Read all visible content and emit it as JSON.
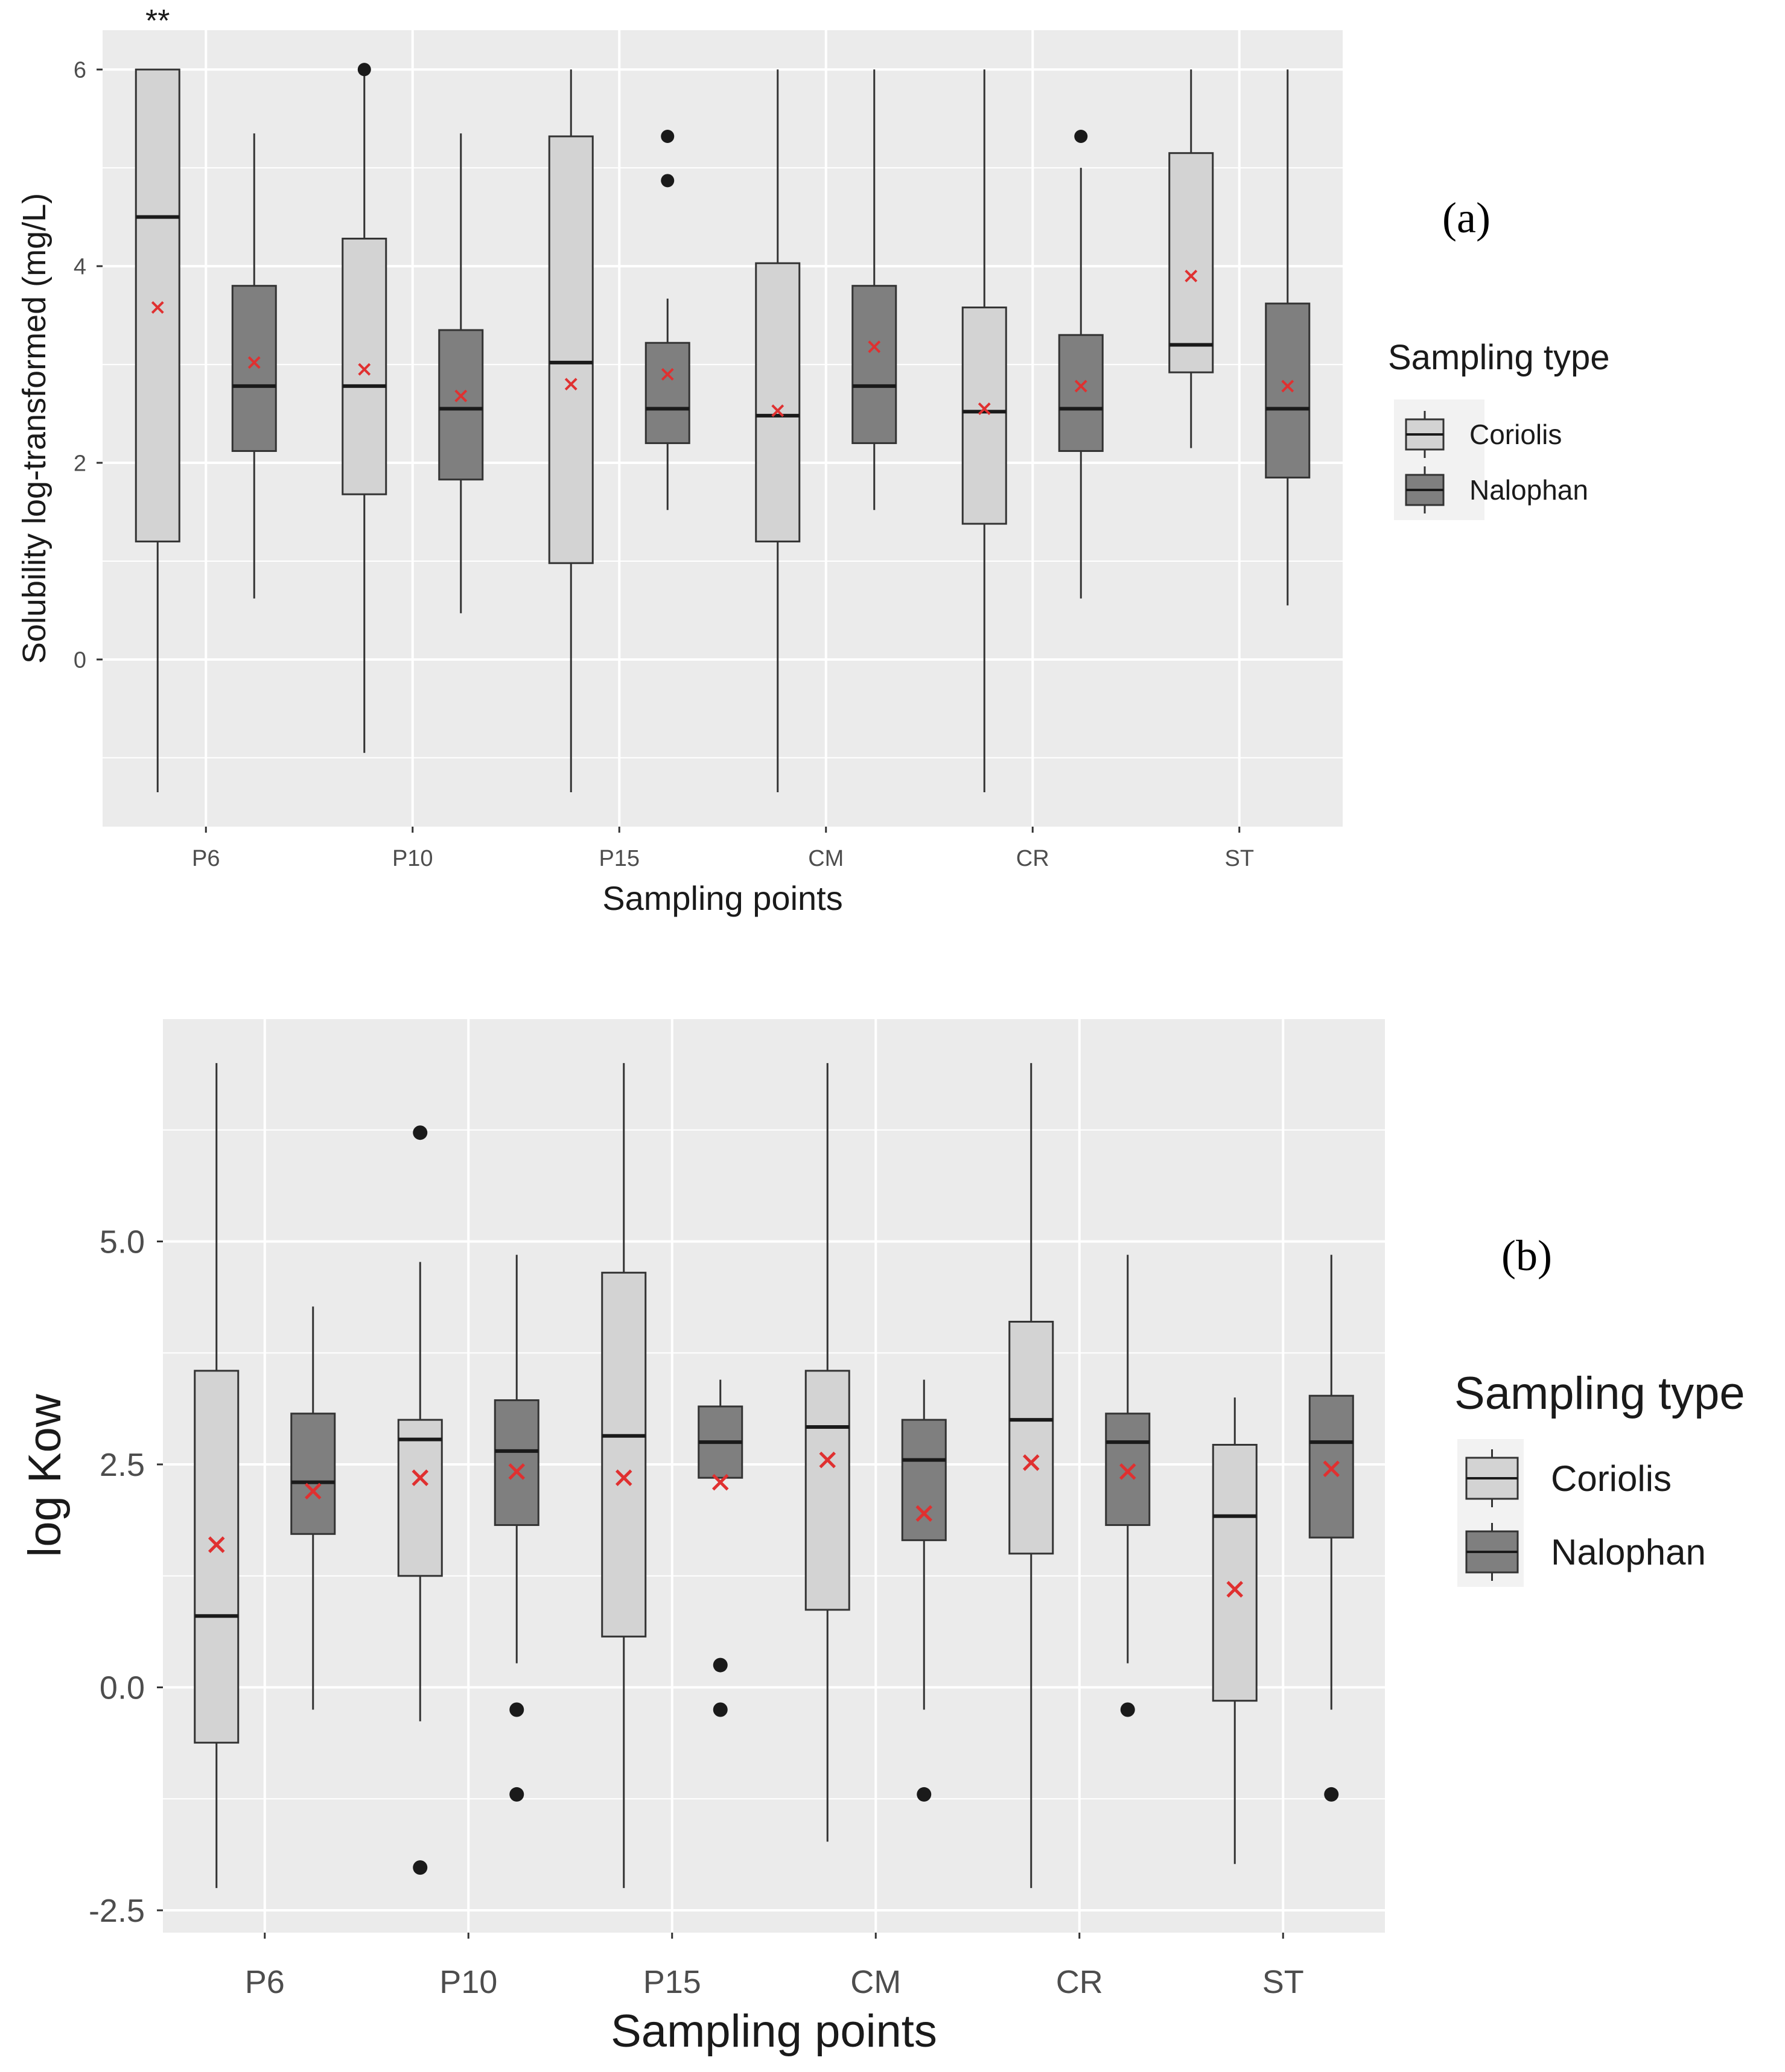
{
  "colors": {
    "panel_bg": "#ebebeb",
    "grid": "#ffffff",
    "coriolis": "#d3d3d3",
    "nalophan": "#7f7f7f",
    "line": "#333333",
    "mean_marker": "#e03030",
    "tick_text": "#4d4d4d",
    "axis_text": "#1a1a1a"
  },
  "chart_data": [
    {
      "type": "boxplot",
      "panel_label": "(a)",
      "title": "",
      "xlabel": "Sampling points",
      "ylabel": "Solubility log-transformed (mg/L)",
      "ylim": [
        -1.7,
        6.4
      ],
      "yticks": [
        0,
        2,
        4,
        6
      ],
      "ytick_labels": [
        "0",
        "2",
        "4",
        "6"
      ],
      "grid": true,
      "categories": [
        "P6",
        "P10",
        "P15",
        "CM",
        "CR",
        "ST"
      ],
      "significance": [
        {
          "category": "P6",
          "text": "**"
        }
      ],
      "legend": {
        "title": "Sampling type",
        "position": "right",
        "entries": [
          "Coriolis",
          "Nalophan"
        ]
      },
      "series": [
        {
          "name": "Coriolis",
          "boxes": [
            {
              "whisker_low": -1.35,
              "q1": 1.2,
              "median": 4.5,
              "q3": 6.0,
              "whisker_high": 6.0,
              "mean": 3.58,
              "outliers": []
            },
            {
              "whisker_low": -0.95,
              "q1": 1.68,
              "median": 2.78,
              "q3": 4.28,
              "whisker_high": 6.0,
              "mean": 2.95,
              "outliers": [
                6.0
              ]
            },
            {
              "whisker_low": -1.35,
              "q1": 0.98,
              "median": 3.02,
              "q3": 5.32,
              "whisker_high": 6.0,
              "mean": 2.8,
              "outliers": []
            },
            {
              "whisker_low": -1.35,
              "q1": 1.2,
              "median": 2.48,
              "q3": 4.03,
              "whisker_high": 6.0,
              "mean": 2.53,
              "outliers": []
            },
            {
              "whisker_low": -1.35,
              "q1": 1.38,
              "median": 2.52,
              "q3": 3.58,
              "whisker_high": 6.0,
              "mean": 2.55,
              "outliers": []
            },
            {
              "whisker_low": 2.15,
              "q1": 2.92,
              "median": 3.2,
              "q3": 5.15,
              "whisker_high": 6.0,
              "mean": 3.9,
              "outliers": []
            }
          ]
        },
        {
          "name": "Nalophan",
          "boxes": [
            {
              "whisker_low": 0.62,
              "q1": 2.12,
              "median": 2.78,
              "q3": 3.8,
              "whisker_high": 5.35,
              "mean": 3.02,
              "outliers": []
            },
            {
              "whisker_low": 0.47,
              "q1": 1.83,
              "median": 2.55,
              "q3": 3.35,
              "whisker_high": 5.35,
              "mean": 2.68,
              "outliers": []
            },
            {
              "whisker_low": 1.52,
              "q1": 2.2,
              "median": 2.55,
              "q3": 3.22,
              "whisker_high": 3.67,
              "mean": 2.9,
              "outliers": [
                5.32,
                4.87
              ]
            },
            {
              "whisker_low": 1.52,
              "q1": 2.2,
              "median": 2.78,
              "q3": 3.8,
              "whisker_high": 6.0,
              "mean": 3.18,
              "outliers": []
            },
            {
              "whisker_low": 0.62,
              "q1": 2.12,
              "median": 2.55,
              "q3": 3.3,
              "whisker_high": 5.0,
              "mean": 2.78,
              "outliers": [
                5.32
              ]
            },
            {
              "whisker_low": 0.55,
              "q1": 1.85,
              "median": 2.55,
              "q3": 3.62,
              "whisker_high": 6.0,
              "mean": 2.78,
              "outliers": []
            }
          ]
        }
      ]
    },
    {
      "type": "boxplot",
      "panel_label": "(b)",
      "title": "",
      "xlabel": "Sampling points",
      "ylabel": "log Kow",
      "ylim": [
        -2.75,
        7.5
      ],
      "yticks": [
        -2.5,
        0.0,
        2.5,
        5.0
      ],
      "ytick_labels": [
        "-2.5",
        "0.0",
        "2.5",
        "5.0"
      ],
      "grid": true,
      "categories": [
        "P6",
        "P10",
        "P15",
        "CM",
        "CR",
        "ST"
      ],
      "significance": [],
      "legend": {
        "title": "Sampling type",
        "position": "right",
        "entries": [
          "Coriolis",
          "Nalophan"
        ]
      },
      "series": [
        {
          "name": "Coriolis",
          "boxes": [
            {
              "whisker_low": -2.25,
              "q1": -0.62,
              "median": 0.8,
              "q3": 3.55,
              "whisker_high": 7.0,
              "mean": 1.6,
              "outliers": []
            },
            {
              "whisker_low": -0.38,
              "q1": 1.25,
              "median": 2.78,
              "q3": 3.0,
              "whisker_high": 4.77,
              "mean": 2.35,
              "outliers": [
                6.22,
                -2.02
              ]
            },
            {
              "whisker_low": -2.25,
              "q1": 0.57,
              "median": 2.82,
              "q3": 4.65,
              "whisker_high": 7.0,
              "mean": 2.35,
              "outliers": []
            },
            {
              "whisker_low": -1.73,
              "q1": 0.87,
              "median": 2.92,
              "q3": 3.55,
              "whisker_high": 7.0,
              "mean": 2.55,
              "outliers": []
            },
            {
              "whisker_low": -2.25,
              "q1": 1.5,
              "median": 3.0,
              "q3": 4.1,
              "whisker_high": 7.0,
              "mean": 2.52,
              "outliers": []
            },
            {
              "whisker_low": -1.98,
              "q1": -0.15,
              "median": 1.92,
              "q3": 2.72,
              "whisker_high": 3.25,
              "mean": 1.1,
              "outliers": []
            }
          ]
        },
        {
          "name": "Nalophan",
          "boxes": [
            {
              "whisker_low": -0.25,
              "q1": 1.72,
              "median": 2.3,
              "q3": 3.07,
              "whisker_high": 4.27,
              "mean": 2.2,
              "outliers": []
            },
            {
              "whisker_low": 0.27,
              "q1": 1.82,
              "median": 2.65,
              "q3": 3.22,
              "whisker_high": 4.85,
              "mean": 2.42,
              "outliers": [
                -0.25,
                -1.2
              ]
            },
            {
              "whisker_low": 2.35,
              "q1": 2.35,
              "median": 2.75,
              "q3": 3.15,
              "whisker_high": 3.45,
              "mean": 2.3,
              "outliers": [
                0.25,
                -0.25
              ]
            },
            {
              "whisker_low": -0.25,
              "q1": 1.65,
              "median": 2.55,
              "q3": 3.0,
              "whisker_high": 3.45,
              "mean": 1.95,
              "outliers": [
                -1.2
              ]
            },
            {
              "whisker_low": 0.27,
              "q1": 1.82,
              "median": 2.75,
              "q3": 3.07,
              "whisker_high": 4.85,
              "mean": 2.42,
              "outliers": [
                -0.25
              ]
            },
            {
              "whisker_low": -0.25,
              "q1": 1.68,
              "median": 2.75,
              "q3": 3.27,
              "whisker_high": 4.85,
              "mean": 2.45,
              "outliers": [
                -1.2
              ]
            }
          ]
        }
      ]
    }
  ]
}
